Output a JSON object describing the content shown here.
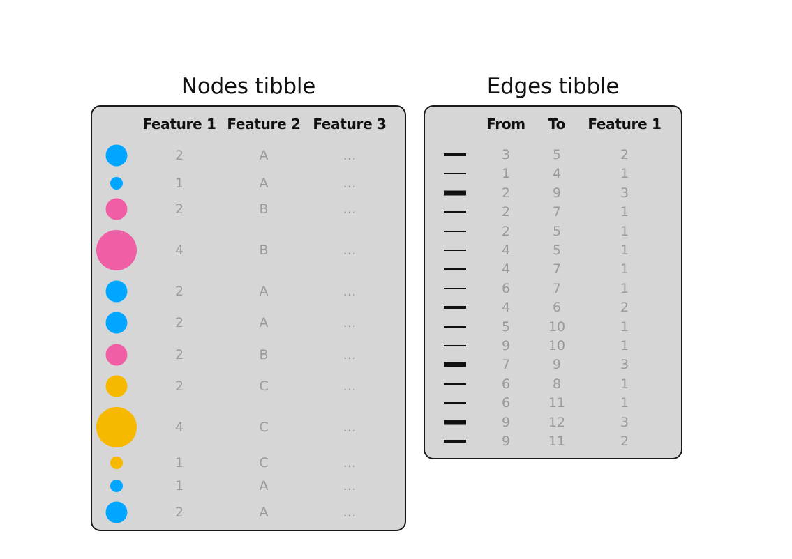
{
  "nodes_panel": {
    "title": "Nodes tibble",
    "headers": [
      "Feature 1",
      "Feature 2",
      "Feature 3"
    ],
    "rows": [
      {
        "color": "#00a6ff",
        "size": 2,
        "f1": "2",
        "f2": "A",
        "f3": "…"
      },
      {
        "color": "#00a6ff",
        "size": 1,
        "f1": "1",
        "f2": "A",
        "f3": "…"
      },
      {
        "color": "#f05fa6",
        "size": 2,
        "f1": "2",
        "f2": "B",
        "f3": "…"
      },
      {
        "color": "#f05fa6",
        "size": 4,
        "f1": "4",
        "f2": "B",
        "f3": "…"
      },
      {
        "color": "#00a6ff",
        "size": 2,
        "f1": "2",
        "f2": "A",
        "f3": "…"
      },
      {
        "color": "#00a6ff",
        "size": 2,
        "f1": "2",
        "f2": "A",
        "f3": "…"
      },
      {
        "color": "#f05fa6",
        "size": 2,
        "f1": "2",
        "f2": "B",
        "f3": "…"
      },
      {
        "color": "#f7b800",
        "size": 2,
        "f1": "2",
        "f2": "C",
        "f3": "…"
      },
      {
        "color": "#f7b800",
        "size": 4,
        "f1": "4",
        "f2": "C",
        "f3": "…"
      },
      {
        "color": "#f7b800",
        "size": 1,
        "f1": "1",
        "f2": "C",
        "f3": "…"
      },
      {
        "color": "#00a6ff",
        "size": 1,
        "f1": "1",
        "f2": "A",
        "f3": "…"
      },
      {
        "color": "#00a6ff",
        "size": 2,
        "f1": "2",
        "f2": "A",
        "f3": "…"
      }
    ]
  },
  "edges_panel": {
    "title": "Edges tibble",
    "headers": [
      "From",
      "To",
      "Feature 1"
    ],
    "rows": [
      {
        "weight": 2,
        "from": "3",
        "to": "5",
        "f1": "2"
      },
      {
        "weight": 1,
        "from": "1",
        "to": "4",
        "f1": "1"
      },
      {
        "weight": 3,
        "from": "2",
        "to": "9",
        "f1": "3"
      },
      {
        "weight": 1,
        "from": "2",
        "to": "7",
        "f1": "1"
      },
      {
        "weight": 1,
        "from": "2",
        "to": "5",
        "f1": "1"
      },
      {
        "weight": 1,
        "from": "4",
        "to": "5",
        "f1": "1"
      },
      {
        "weight": 1,
        "from": "4",
        "to": "7",
        "f1": "1"
      },
      {
        "weight": 1,
        "from": "6",
        "to": "7",
        "f1": "1"
      },
      {
        "weight": 2,
        "from": "4",
        "to": "6",
        "f1": "2"
      },
      {
        "weight": 1,
        "from": "5",
        "to": "10",
        "f1": "1"
      },
      {
        "weight": 1,
        "from": "9",
        "to": "10",
        "f1": "1"
      },
      {
        "weight": 3,
        "from": "7",
        "to": "9",
        "f1": "3"
      },
      {
        "weight": 1,
        "from": "6",
        "to": "8",
        "f1": "1"
      },
      {
        "weight": 1,
        "from": "6",
        "to": "11",
        "f1": "1"
      },
      {
        "weight": 3,
        "from": "9",
        "to": "12",
        "f1": "3"
      },
      {
        "weight": 2,
        "from": "9",
        "to": "11",
        "f1": "2"
      }
    ]
  }
}
